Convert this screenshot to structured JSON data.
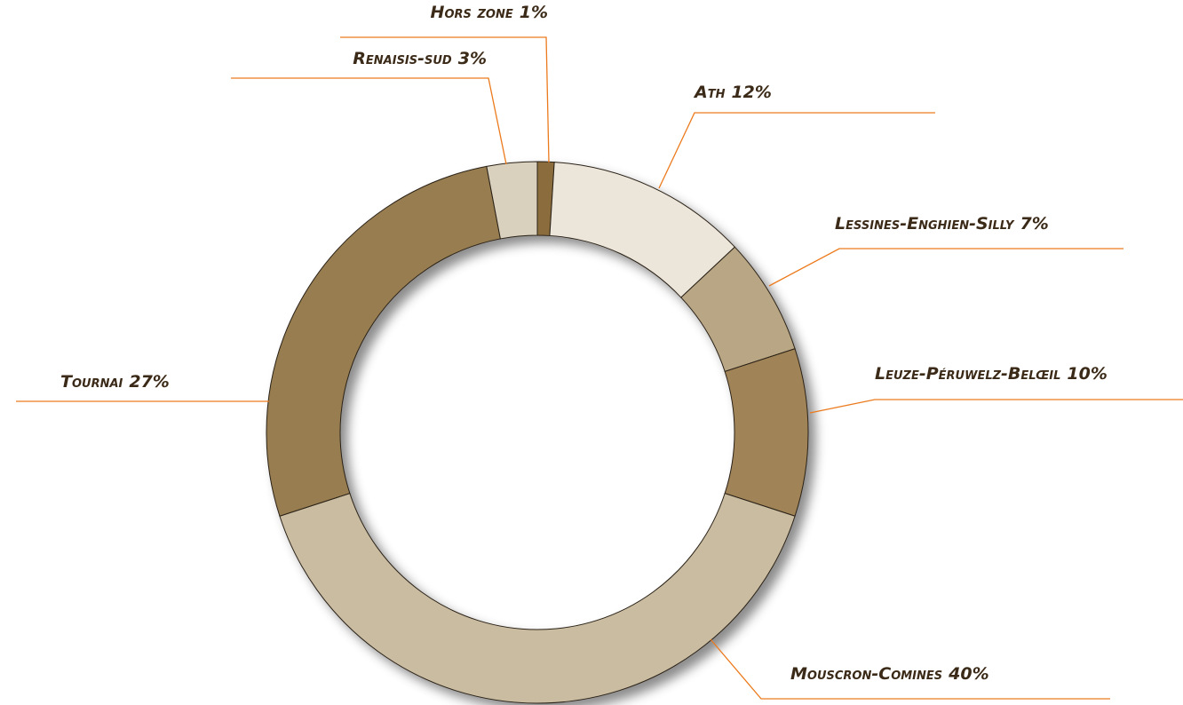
{
  "chart_data": {
    "type": "donut",
    "categories": [
      "Hors zone",
      "Ath",
      "Lessines-Enghien-Silly",
      "Leuze-Péruwelz-Belœil",
      "Mouscron-Comines",
      "Tournai",
      "Renaisis-sud"
    ],
    "values": [
      1,
      12,
      7,
      10,
      40,
      27,
      3
    ],
    "value_labels": [
      "1%",
      "12%",
      "7%",
      "10%",
      "40%",
      "27%",
      "3%"
    ],
    "colors": [
      "#8b6d3e",
      "#ece5d9",
      "#b8a684",
      "#a08356",
      "#c9bca1",
      "#977d50",
      "#d9d0bd"
    ]
  }
}
